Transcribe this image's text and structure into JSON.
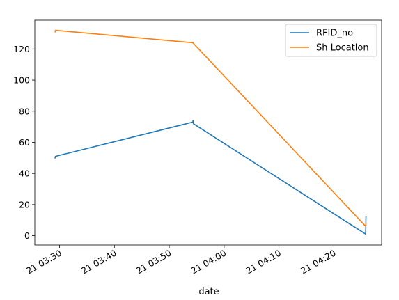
{
  "chart_data": {
    "type": "line",
    "xlabel": "date",
    "ylabel": "",
    "x_ticks": [
      "21 03:30",
      "21 03:40",
      "21 03:50",
      "21 04:00",
      "21 04:10",
      "21 04:20"
    ],
    "x_tick_minutes": [
      210,
      220,
      230,
      240,
      250,
      260
    ],
    "y_ticks": [
      0,
      20,
      40,
      60,
      80,
      100,
      120
    ],
    "xlim_minutes": [
      205.5,
      268.7
    ],
    "ylim": [
      -6,
      138.5
    ],
    "legend_position": "upper right",
    "series": [
      {
        "name": "RFID_no",
        "color": "#1f77b4",
        "points": [
          {
            "t": 209.2,
            "y": 50
          },
          {
            "t": 209.25,
            "y": 51
          },
          {
            "t": 234.3,
            "y": 73
          },
          {
            "t": 234.35,
            "y": 74
          },
          {
            "t": 234.4,
            "y": 72
          },
          {
            "t": 265.8,
            "y": 1
          },
          {
            "t": 265.85,
            "y": 12
          }
        ]
      },
      {
        "name": "Sh Location",
        "color": "#ff7f0e",
        "points": [
          {
            "t": 209.2,
            "y": 131
          },
          {
            "t": 209.25,
            "y": 132
          },
          {
            "t": 234.3,
            "y": 124
          },
          {
            "t": 265.8,
            "y": 6
          },
          {
            "t": 265.85,
            "y": 8
          }
        ]
      }
    ]
  }
}
